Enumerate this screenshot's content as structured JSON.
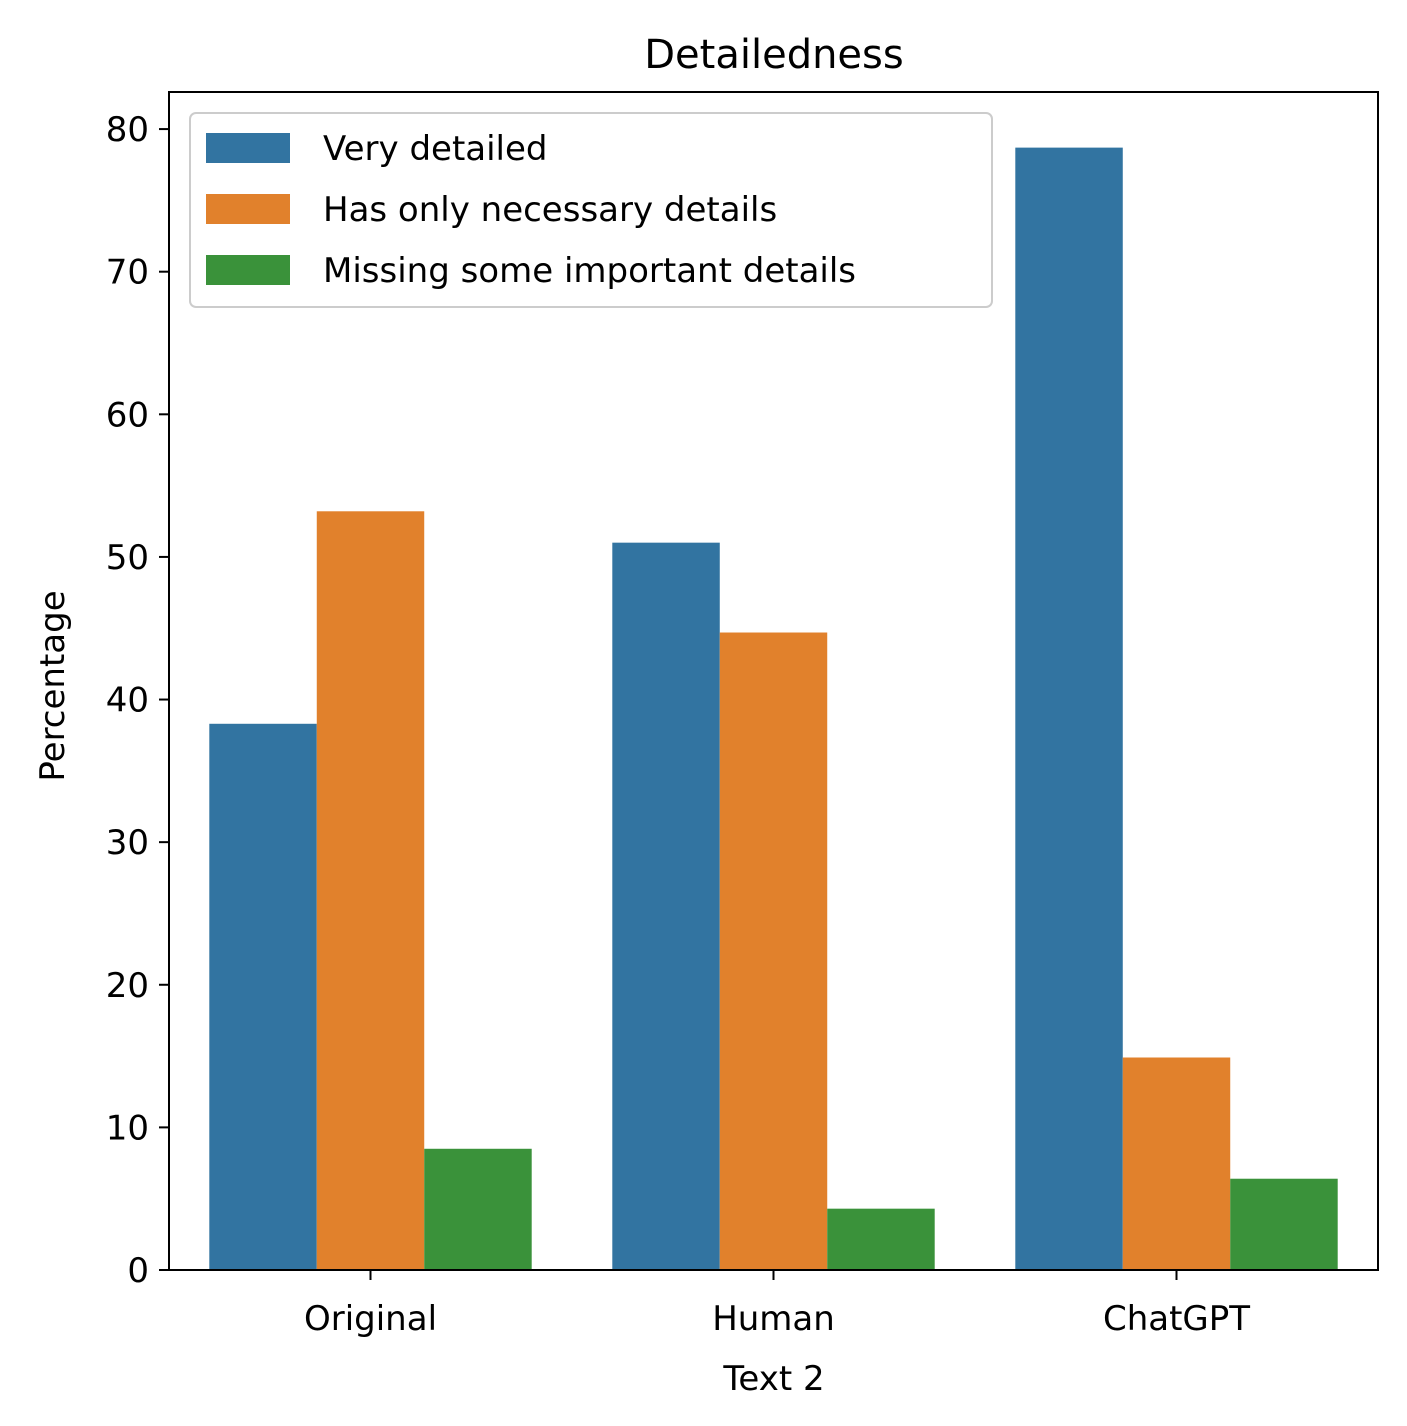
{
  "chart_data": {
    "type": "bar",
    "title": "Detailedness",
    "xlabel": "Text 2",
    "ylabel": "Percentage",
    "categories": [
      "Original",
      "Human",
      "ChatGPT"
    ],
    "series": [
      {
        "name": "Very detailed",
        "color": "#3274a1",
        "values": [
          38.3,
          51.0,
          78.7
        ]
      },
      {
        "name": "Has only necessary details",
        "color": "#e1812c",
        "values": [
          53.2,
          44.7,
          14.9
        ]
      },
      {
        "name": "Missing some important details",
        "color": "#3a923a",
        "values": [
          8.5,
          4.3,
          6.4
        ]
      }
    ],
    "ylim": [
      0,
      82.6
    ],
    "yticks": [
      "0",
      "10",
      "20",
      "30",
      "40",
      "50",
      "60",
      "70",
      "80"
    ],
    "grid": false,
    "legend_position": "top-left"
  }
}
